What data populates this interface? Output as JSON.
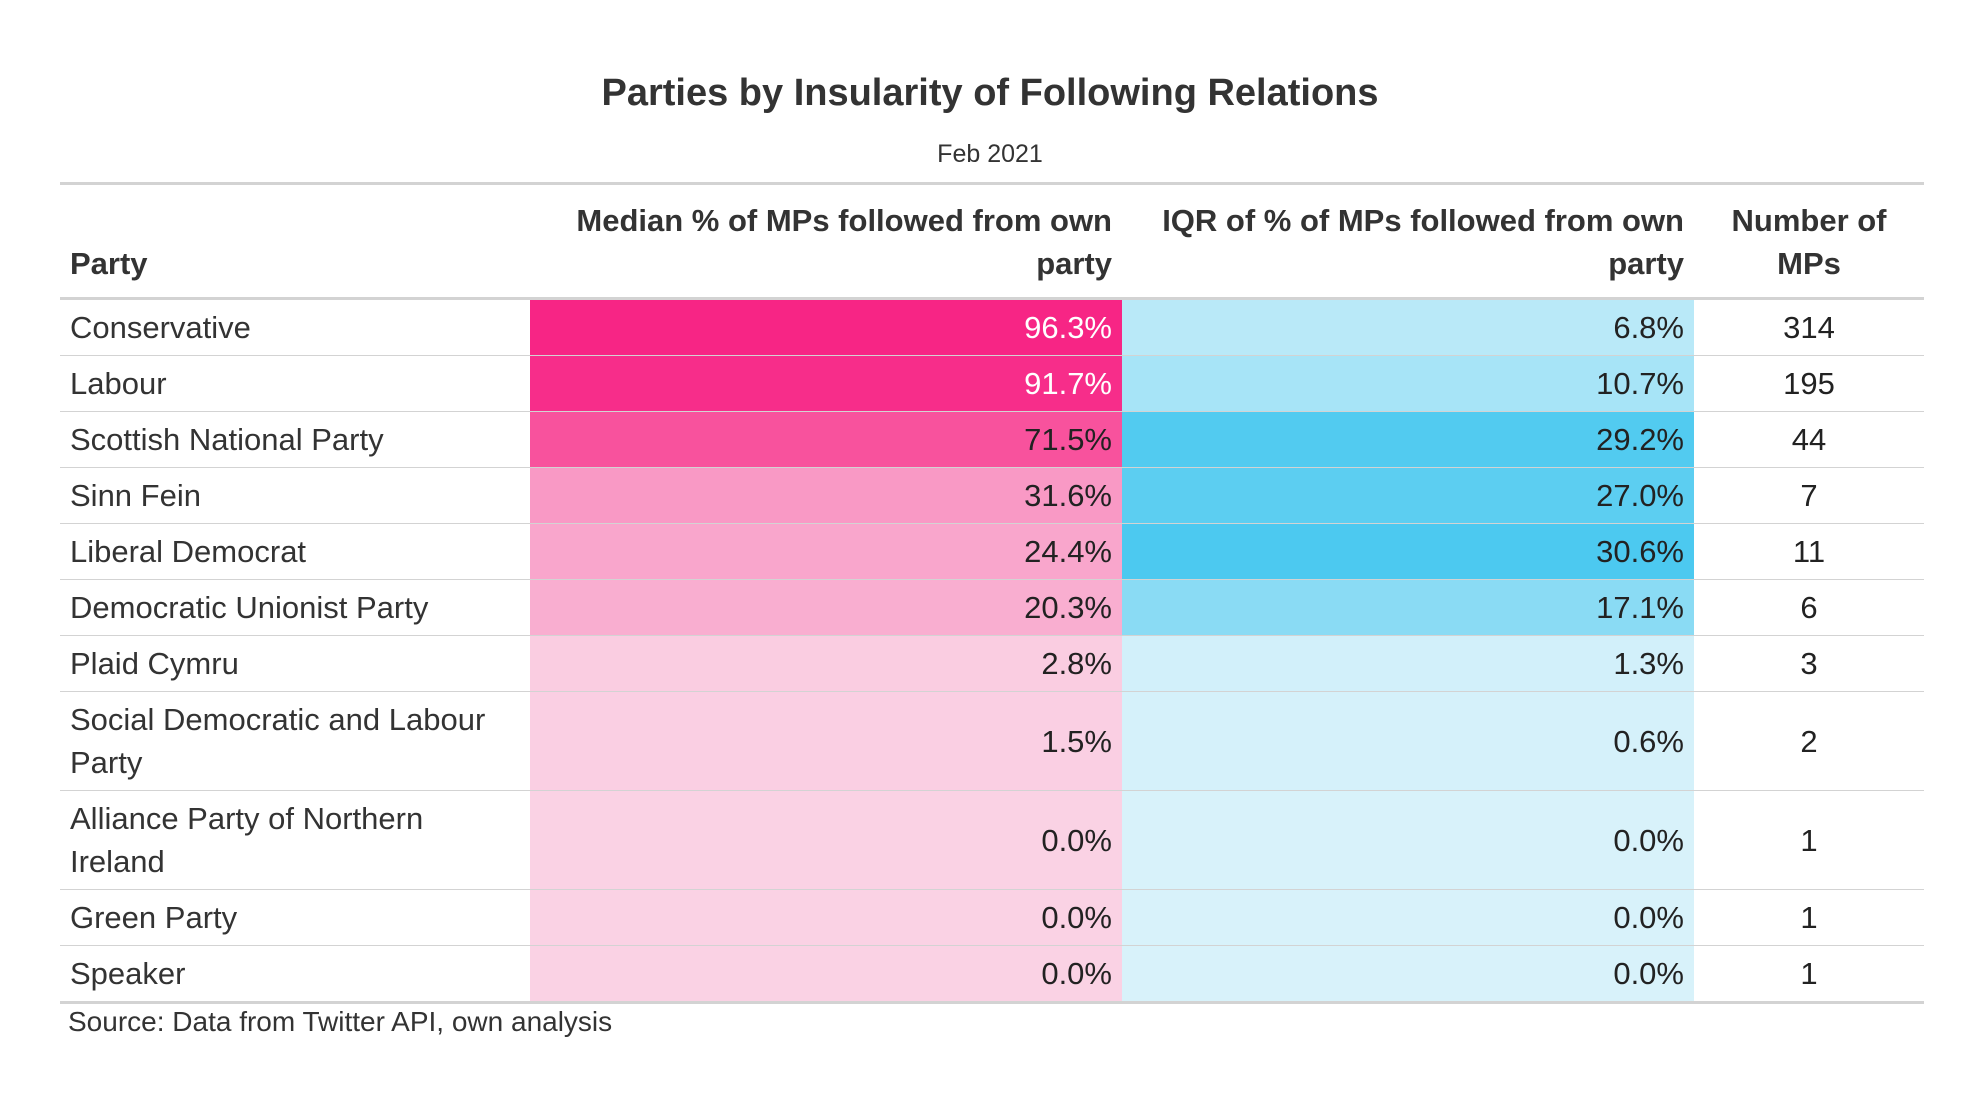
{
  "chart_data": {
    "type": "table",
    "title": "Parties by Insularity of Following Relations",
    "subtitle": "Feb 2021",
    "columns": [
      "Party",
      "Median % of MPs followed from own party",
      "IQR of % of MPs followed from own party",
      "Number of MPs"
    ],
    "rows": [
      {
        "party": "Conservative",
        "median": "96.3%",
        "iqr": "6.8%",
        "mps": "314",
        "median_value": 96.3,
        "iqr_value": 6.8
      },
      {
        "party": "Labour",
        "median": "91.7%",
        "iqr": "10.7%",
        "mps": "195",
        "median_value": 91.7,
        "iqr_value": 10.7
      },
      {
        "party": "Scottish National Party",
        "median": "71.5%",
        "iqr": "29.2%",
        "mps": "44",
        "median_value": 71.5,
        "iqr_value": 29.2
      },
      {
        "party": "Sinn Fein",
        "median": "31.6%",
        "iqr": "27.0%",
        "mps": "7",
        "median_value": 31.6,
        "iqr_value": 27.0
      },
      {
        "party": "Liberal Democrat",
        "median": "24.4%",
        "iqr": "30.6%",
        "mps": "11",
        "median_value": 24.4,
        "iqr_value": 30.6
      },
      {
        "party": "Democratic Unionist Party",
        "median": "20.3%",
        "iqr": "17.1%",
        "mps": "6",
        "median_value": 20.3,
        "iqr_value": 17.1
      },
      {
        "party": "Plaid Cymru",
        "median": "2.8%",
        "iqr": "1.3%",
        "mps": "3",
        "median_value": 2.8,
        "iqr_value": 1.3
      },
      {
        "party": "Social Democratic and Labour Party",
        "median": "1.5%",
        "iqr": "0.6%",
        "mps": "2",
        "median_value": 1.5,
        "iqr_value": 0.6
      },
      {
        "party": "Alliance Party of Northern Ireland",
        "median": "0.0%",
        "iqr": "0.0%",
        "mps": "1",
        "median_value": 0.0,
        "iqr_value": 0.0
      },
      {
        "party": "Green Party",
        "median": "0.0%",
        "iqr": "0.0%",
        "mps": "1",
        "median_value": 0.0,
        "iqr_value": 0.0
      },
      {
        "party": "Speaker",
        "median": "0.0%",
        "iqr": "0.0%",
        "mps": "1",
        "median_value": 0.0,
        "iqr_value": 0.0
      }
    ],
    "colors": {
      "median_low": "#fad2e4",
      "median_high": "#f72585",
      "iqr_low": "#d8f2fa",
      "iqr_high": "#4cc9f0"
    },
    "source": "Source: Data from Twitter API, own analysis"
  }
}
